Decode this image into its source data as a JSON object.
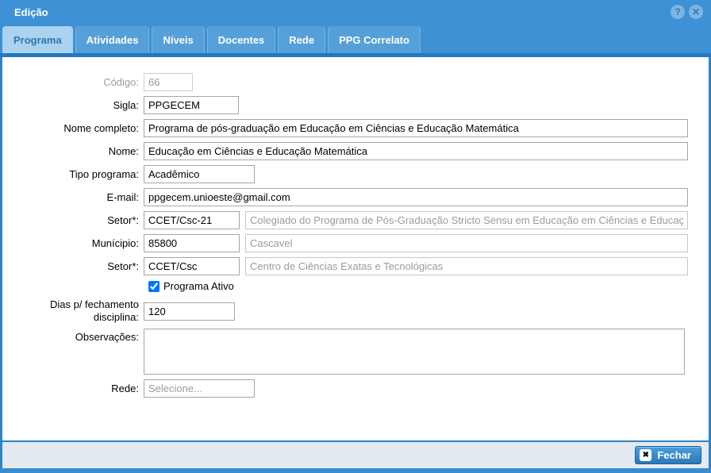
{
  "window": {
    "title": "Edição"
  },
  "titlebar": {
    "help_icon": "?",
    "close_icon": "✕"
  },
  "tabs": [
    {
      "label": "Programa",
      "active": true
    },
    {
      "label": "Atividades",
      "active": false
    },
    {
      "label": "Níveis",
      "active": false
    },
    {
      "label": "Docentes",
      "active": false
    },
    {
      "label": "Rede",
      "active": false
    },
    {
      "label": "PPG Correlato",
      "active": false
    }
  ],
  "form": {
    "codigo": {
      "label": "Código:",
      "value": "66"
    },
    "sigla": {
      "label": "Sigla:",
      "value": "PPGECEM"
    },
    "nome_completo": {
      "label": "Nome completo:",
      "value": "Programa de pós-graduação em Educação em Ciências e Educação Matemática"
    },
    "nome": {
      "label": "Nome:",
      "value": "Educação em Ciências e Educação Matemática"
    },
    "tipo_programa": {
      "label": "Tipo programa:",
      "value": "Acadêmico"
    },
    "email": {
      "label": "E-mail:",
      "value": "ppgecem.unioeste@gmail.com"
    },
    "setor1": {
      "label": "Setor*:",
      "value": "CCET/Csc-21",
      "description": "Colegiado do Programa de Pós-Graduação Stricto Sensu em Educação em Ciências e Educaç"
    },
    "municipio": {
      "label": "Munícipio:",
      "value": "85800",
      "description": "Cascavel"
    },
    "setor2": {
      "label": "Setor*:",
      "value": "CCET/Csc",
      "description": "Centro de Ciências Exatas e Tecnológicas"
    },
    "programa_ativo": {
      "label": "Programa Ativo",
      "checked": "checked"
    },
    "dias_fechamento": {
      "label": "Dias p/ fechamento disciplina:",
      "value": "120"
    },
    "observacoes": {
      "label": "Observações:",
      "value": ""
    },
    "rede": {
      "label": "Rede:",
      "placeholder": "Selecione..."
    }
  },
  "footer": {
    "close_button": "Fechar",
    "close_icon": "✖"
  },
  "colors": {
    "titlebar_bg": "#3d91d4",
    "inactive_tab_bg": "#55a0d9",
    "active_tab_bg": "#abd2ef",
    "active_tab_text": "#2d77b5",
    "divider": "#2478bd",
    "content_border": "#2e82c6",
    "footer_bg": "#e3eaf1",
    "muted_text": "#9b9b9b"
  }
}
